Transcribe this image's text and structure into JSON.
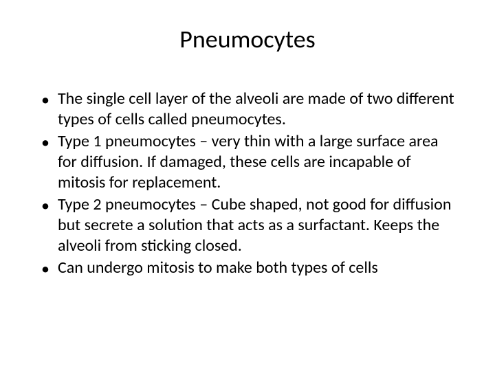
{
  "slide": {
    "title": "Pneumocytes",
    "bullets": [
      "The single cell layer of the alveoli are made of two different types of cells called pneumocytes.",
      "Type 1 pneumocytes – very thin with a large surface area for diffusion.  If damaged, these cells are incapable of mitosis for replacement.",
      "Type 2 pneumocytes – Cube shaped, not good for diffusion but secrete a solution that acts as a surfactant.  Keeps the alveoli from sticking closed.",
      "Can undergo mitosis to make both types of cells"
    ],
    "bullet_marker": "•"
  },
  "styling": {
    "background_color": "#ffffff",
    "text_color": "#000000",
    "title_fontsize": 36,
    "body_fontsize": 24,
    "font_family": "Calibri"
  }
}
